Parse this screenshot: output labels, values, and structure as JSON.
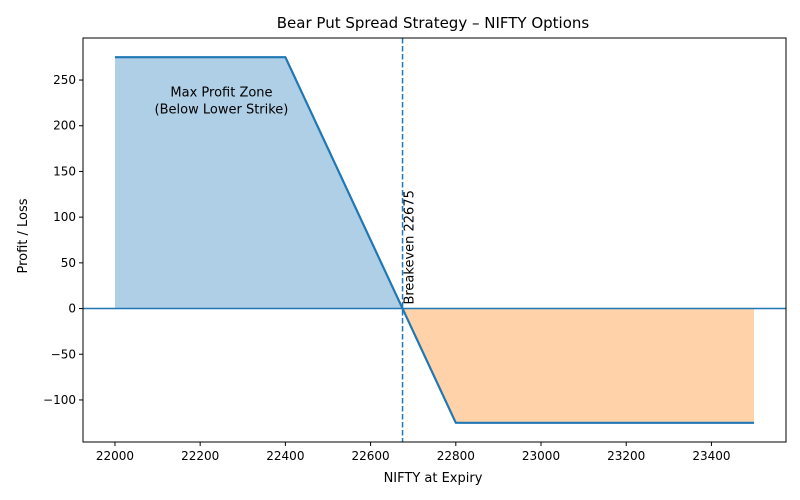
{
  "chart_data": {
    "type": "area",
    "title": "Bear Put Spread Strategy – NIFTY Options",
    "xlabel": "NIFTY at Expiry",
    "ylabel": "Profit / Loss",
    "xlim": [
      21925,
      23575
    ],
    "ylim": [
      -146,
      296
    ],
    "xticks": [
      22000,
      22200,
      22400,
      22600,
      22800,
      23000,
      23200,
      23400
    ],
    "yticks": [
      -100,
      -50,
      0,
      50,
      100,
      150,
      200,
      250
    ],
    "grid": false,
    "series": [
      {
        "x": [
          22000,
          22400,
          22800,
          23500
        ],
        "y": [
          275,
          275,
          -125,
          -125
        ],
        "color": "#1f77b4"
      }
    ],
    "profit_fill_color": "#afcfe6",
    "loss_fill_color": "#ffd2aa",
    "zero_line_color": "#1f77b4",
    "breakeven": {
      "x": 22675,
      "label": "Breakeven 22675",
      "color": "#1f77b4"
    },
    "annotation": {
      "lines": [
        "Max Profit Zone",
        "(Below Lower Strike)"
      ],
      "x": 22250,
      "y": 232
    }
  }
}
